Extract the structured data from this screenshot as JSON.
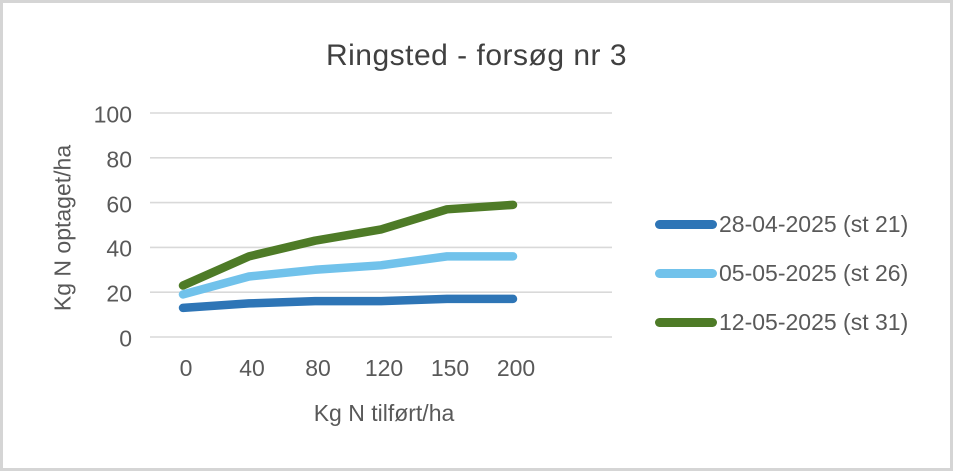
{
  "chart_data": {
    "type": "line",
    "title": "Ringsted - forsøg nr 3",
    "xlabel": "Kg N tilført/ha",
    "ylabel": "Kg N optaget/ha",
    "categories": [
      "0",
      "40",
      "80",
      "120",
      "150",
      "200"
    ],
    "y_ticks": [
      0,
      20,
      40,
      60,
      80,
      100
    ],
    "ylim": [
      0,
      100
    ],
    "grid": "horizontal",
    "gridline_color": "#d9d9d9",
    "text_color": "#595959",
    "title_color": "#404040",
    "legend_position": "right",
    "series": [
      {
        "name": "28-04-2025 (st 21)",
        "color": "#2e75b6",
        "values": [
          13,
          15,
          16,
          16,
          17,
          17
        ]
      },
      {
        "name": "05-05-2025 (st 26)",
        "color": "#71c2eb",
        "values": [
          19,
          27,
          30,
          32,
          36,
          36
        ]
      },
      {
        "name": "12-05-2025 (st 31)",
        "color": "#4e7b27",
        "values": [
          23,
          36,
          43,
          48,
          57,
          59
        ]
      }
    ]
  }
}
